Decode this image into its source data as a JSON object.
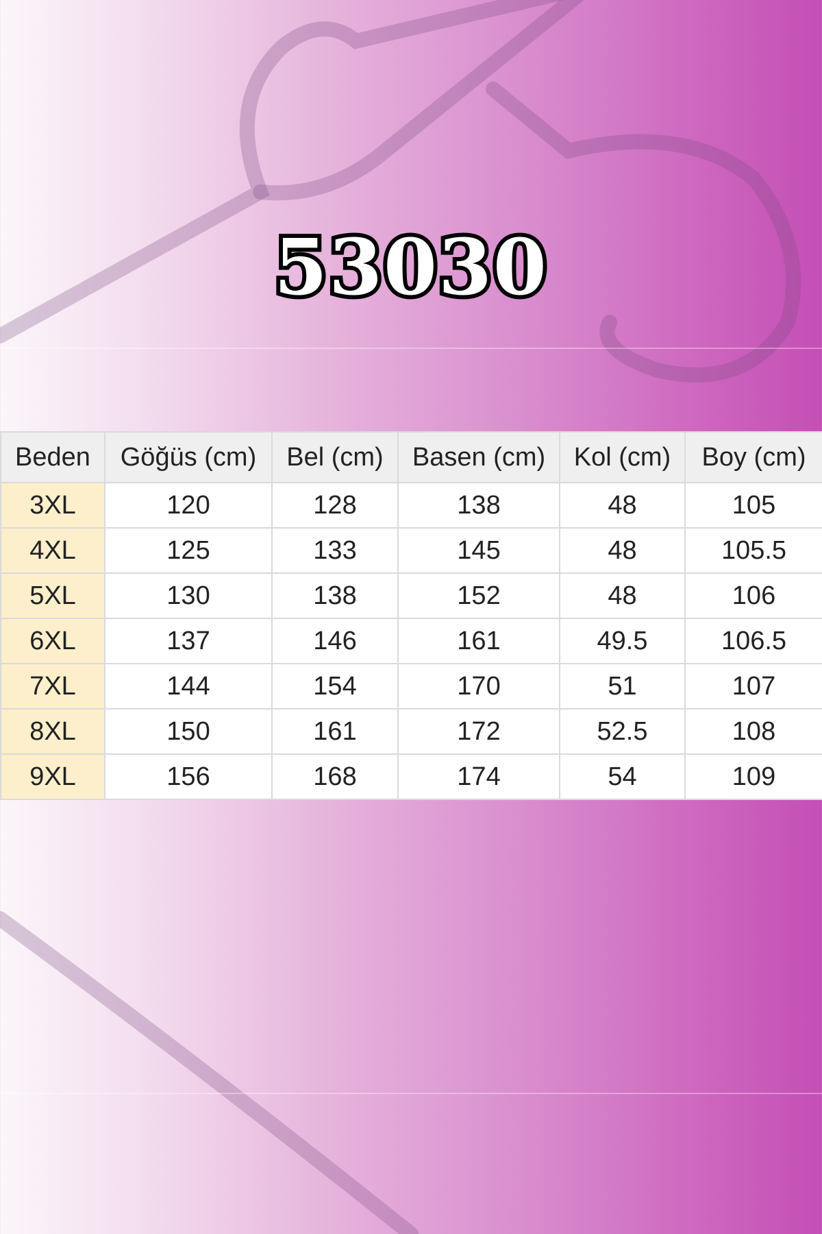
{
  "title": "53030",
  "table": {
    "headers": [
      "Beden",
      "Göğüs (cm)",
      "Bel (cm)",
      "Basen (cm)",
      "Kol (cm)",
      "Boy (cm)"
    ],
    "rows": [
      [
        "3XL",
        "120",
        "128",
        "138",
        "48",
        "105"
      ],
      [
        "4XL",
        "125",
        "133",
        "145",
        "48",
        "105.5"
      ],
      [
        "5XL",
        "130",
        "138",
        "152",
        "48",
        "106"
      ],
      [
        "6XL",
        "137",
        "146",
        "161",
        "49.5",
        "106.5"
      ],
      [
        "7XL",
        "144",
        "154",
        "170",
        "51",
        "107"
      ],
      [
        "8XL",
        "150",
        "161",
        "172",
        "52.5",
        "108"
      ],
      [
        "9XL",
        "156",
        "168",
        "174",
        "54",
        "109"
      ]
    ]
  },
  "colors": {
    "background_accent": "#c44fb6",
    "size_cell": "#fdefcc",
    "header_cell": "#efefef"
  }
}
